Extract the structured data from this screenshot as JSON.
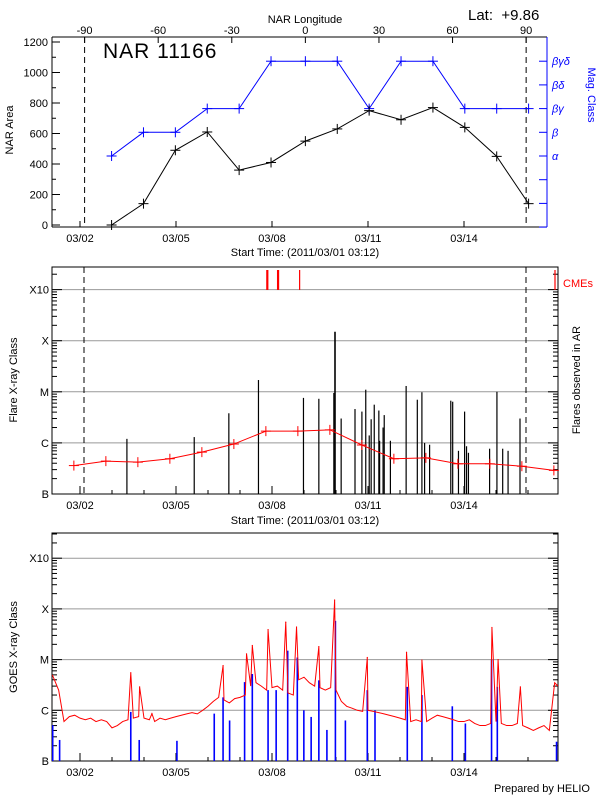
{
  "chart_data": [
    {
      "type": "line",
      "title": "NAR 11166",
      "annotation": "Lat:  +9.86",
      "x_top_label": "NAR Longitude",
      "x_top_ticks": [
        -90,
        -60,
        -30,
        0,
        30,
        60,
        90
      ],
      "x_top_range": [
        -103,
        103
      ],
      "xlabel": "Start Time: (2011/03/01 03:12)",
      "x_date_ticks": [
        "03/02",
        "03/05",
        "03/08",
        "03/11",
        "03/14"
      ],
      "ylabel": "NAR Area",
      "ylim": [
        0,
        1200
      ],
      "y_ticks": [
        0,
        200,
        400,
        600,
        800,
        1000,
        1200
      ],
      "y2label": "Mag. Class",
      "y2_categories": [
        "α",
        "β",
        "βγ",
        "βδ",
        "βγδ"
      ],
      "dashed_longitudes": [
        -90,
        90
      ],
      "colors": {
        "area": "#000000",
        "mag_class": "#0000ff"
      },
      "area_series": {
        "longitude": [
          -79,
          -66,
          -53,
          -40,
          -27,
          -14,
          0,
          13,
          26,
          39,
          52,
          65,
          78,
          91
        ],
        "values": [
          0,
          140,
          490,
          610,
          360,
          410,
          550,
          630,
          750,
          690,
          770,
          640,
          450,
          140
        ]
      },
      "mag_class_series": {
        "longitude": [
          -79,
          -66,
          -53,
          -40,
          -27,
          -14,
          0,
          13,
          26,
          39,
          52,
          65,
          78,
          91
        ],
        "values": [
          "α",
          "β",
          "β",
          "βγ",
          "βγ",
          "βγδ",
          "βγδ",
          "βγδ",
          "βγ",
          "βγδ",
          "βγδ",
          "βγ",
          "βγ",
          "βγ"
        ]
      }
    },
    {
      "type": "bar",
      "ylabel": "Flare X-ray Class",
      "y2label": "Flares observed in AR",
      "y_ticks": [
        "B",
        "C",
        "M",
        "X",
        "X10"
      ],
      "xlabel": "Start Time: (2011/03/01 03:12)",
      "x_date_ticks": [
        "03/02",
        "03/05",
        "03/08",
        "03/11",
        "03/14"
      ],
      "grid": true,
      "cme_label": "CMEs",
      "colors": {
        "flares": "#000000",
        "average": "#ff0000",
        "cmes": "#ff0000",
        "grid": "#999999"
      },
      "dashed_times": [
        "03/02 00:00",
        "03/16 00:00"
      ],
      "flares": [
        [
          "03/03 11:11",
          "C1.2"
        ],
        [
          "03/05 13:40",
          "C1.3"
        ],
        [
          "03/06 15:38",
          "C3.8"
        ],
        [
          "03/07 13:51",
          "M1.7"
        ],
        [
          "03/08 23:36",
          "C7.6"
        ],
        [
          "03/09 11:08",
          "C7.3"
        ],
        [
          "03/09 22:23",
          "C9.5"
        ],
        [
          "03/09 23:15",
          "X1.5"
        ],
        [
          "03/10 03:52",
          "C3.0"
        ],
        [
          "03/10 14:15",
          "C4.6"
        ],
        [
          "03/10 19:26",
          "C4.1"
        ],
        [
          "03/10 22:19",
          "M1.1"
        ],
        [
          "03/11 00:03",
          "B1.3"
        ],
        [
          "03/11 00:55",
          "C1.4"
        ],
        [
          "03/11 02:22",
          "C2.9"
        ],
        [
          "03/11 04:41",
          "C5.6"
        ],
        [
          "03/11 08:08",
          "C4.3"
        ],
        [
          "03/11 08:43",
          "C1.1"
        ],
        [
          "03/11 11:18",
          "C2.0"
        ],
        [
          "03/11 12:10",
          "C3.5"
        ],
        [
          "03/11 16:48",
          "C1.1"
        ],
        [
          "03/12 04:36",
          "M1.3"
        ],
        [
          "03/12 12:59",
          "C7.0"
        ],
        [
          "03/12 16:26",
          "C9.8"
        ],
        [
          "03/12 18:27",
          "C1.0"
        ],
        [
          "03/12 22:12",
          "B9.2"
        ],
        [
          "03/13 14:05",
          "C6.7"
        ],
        [
          "03/13 15:31",
          "C6.4"
        ],
        [
          "03/13 19:51",
          "B7.0"
        ],
        [
          "03/14 00:27",
          "C4.1"
        ],
        [
          "03/14 01:54",
          "B8.6"
        ],
        [
          "03/14 03:20",
          "B6.4"
        ],
        [
          "03/14 19:12",
          "B7.7"
        ],
        [
          "03/15 00:42",
          "M1.0"
        ],
        [
          "03/15 05:01",
          "B7.7"
        ],
        [
          "03/15 09:03",
          "B7.0"
        ],
        [
          "03/15 18:00",
          "C3.0"
        ]
      ],
      "average": [
        [
          "03/01 19:24",
          "B3.6"
        ],
        [
          "03/02 19:24",
          "B4.4"
        ],
        [
          "03/03 19:24",
          "B4.2"
        ],
        [
          "03/04 19:24",
          "B4.9"
        ],
        [
          "03/05 19:24",
          "B6.6"
        ],
        [
          "03/06 19:24",
          "B9.5"
        ],
        [
          "03/07 19:24",
          "C1.7"
        ],
        [
          "03/08 19:24",
          "C1.7"
        ],
        [
          "03/09 19:24",
          "C1.8"
        ],
        [
          "03/10 19:24",
          "B9.1"
        ],
        [
          "03/11 19:24",
          "B4.9"
        ],
        [
          "03/12 19:24",
          "B5.1"
        ],
        [
          "03/13 19:24",
          "B3.9"
        ],
        [
          "03/14 19:24",
          "B3.9"
        ],
        [
          "03/15 19:24",
          "B3.5"
        ],
        [
          "03/16 19:24",
          "B2.9"
        ]
      ],
      "cmes": [
        "03/07 20:29",
        "03/08 04:33",
        "03/08 20:43",
        "03/16 20:15"
      ]
    },
    {
      "type": "line",
      "ylabel": "GOES X-ray Class",
      "y_ticks": [
        "B",
        "C",
        "M",
        "X",
        "X10"
      ],
      "x_date_ticks": [
        "03/02",
        "03/05",
        "03/08",
        "03/11",
        "03/14"
      ],
      "grid": true,
      "footer": "Prepared by HELIO",
      "colors": {
        "long_channel": "#ff0000",
        "short_channel": "#0000ff",
        "grid": "#999999"
      },
      "red_series": [
        [
          "03/01 03:12",
          "C5.0"
        ],
        [
          "03/01 04:00",
          "C4.5"
        ],
        [
          "03/01 08:00",
          "C2.5"
        ],
        [
          "03/01 12:00",
          "B6.0"
        ],
        [
          "03/01 16:00",
          "B7.5"
        ],
        [
          "03/01 20:00",
          "B8.0"
        ],
        [
          "03/02 00:00",
          "B7.0"
        ],
        [
          "03/02 04:00",
          "B6.5"
        ],
        [
          "03/02 08:00",
          "B7.0"
        ],
        [
          "03/02 12:00",
          "B6.0"
        ],
        [
          "03/02 16:00",
          "B6.5"
        ],
        [
          "03/02 20:00",
          "B6.0"
        ],
        [
          "03/03 00:00",
          "B4.5"
        ],
        [
          "03/03 04:00",
          "B5.0"
        ],
        [
          "03/03 08:00",
          "B6.0"
        ],
        [
          "03/03 12:00",
          "B6.5"
        ],
        [
          "03/03 16:00",
          "B7.0"
        ],
        [
          "03/03 20:00",
          "B7.5"
        ],
        [
          "03/04 00:00",
          "B7.0"
        ],
        [
          "03/04 04:00",
          "B6.5"
        ],
        [
          "03/04 08:00",
          "B6.0"
        ],
        [
          "03/04 12:00",
          "B7.0"
        ],
        [
          "03/04 16:00",
          "B6.5"
        ],
        [
          "03/04 20:00",
          "B7.0"
        ],
        [
          "03/05 00:00",
          "B7.5"
        ],
        [
          "03/05 04:00",
          "B8.0"
        ],
        [
          "03/05 08:00",
          "B8.5"
        ],
        [
          "03/05 12:00",
          "B9.0"
        ],
        [
          "03/05 16:00",
          "B8.5"
        ],
        [
          "03/05 20:00",
          "C1.0"
        ],
        [
          "03/06 00:00",
          "C1.2"
        ],
        [
          "03/06 04:00",
          "C1.5"
        ],
        [
          "03/06 08:00",
          "C1.8"
        ],
        [
          "03/06 12:00",
          "C1.6"
        ],
        [
          "03/06 16:00",
          "C1.4"
        ],
        [
          "03/06 20:00",
          "C1.7"
        ],
        [
          "03/07 00:00",
          "C1.8"
        ],
        [
          "03/07 04:00",
          "C2.0"
        ],
        [
          "03/07 08:00",
          "C3.0"
        ],
        [
          "03/07 12:00",
          "C3.5"
        ],
        [
          "03/07 16:00",
          "C3.0"
        ],
        [
          "03/07 20:00",
          "C2.5"
        ],
        [
          "03/08 00:00",
          "C2.8"
        ],
        [
          "03/08 04:00",
          "C3.0"
        ],
        [
          "03/08 08:00",
          "C2.5"
        ],
        [
          "03/08 12:00",
          "C2.2"
        ],
        [
          "03/08 16:00",
          "C2.0"
        ],
        [
          "03/08 20:00",
          "C4.0"
        ],
        [
          "03/09 00:00",
          "C4.5"
        ],
        [
          "03/09 04:00",
          "C3.5"
        ],
        [
          "03/09 08:00",
          "C3.0"
        ],
        [
          "03/09 12:00",
          "C2.8"
        ],
        [
          "03/09 16:00",
          "C2.5"
        ],
        [
          "03/09 20:00",
          "C2.8"
        ],
        [
          "03/10 00:00",
          "C2.5"
        ],
        [
          "03/10 04:00",
          "C1.5"
        ],
        [
          "03/10 08:00",
          "C1.2"
        ],
        [
          "03/10 12:00",
          "C1.1"
        ],
        [
          "03/10 16:00",
          "C1.0"
        ],
        [
          "03/10 20:00",
          "B9.5"
        ],
        [
          "03/11 00:00",
          "C1.0"
        ],
        [
          "03/11 04:00",
          "B9.5"
        ],
        [
          "03/11 08:00",
          "B9.0"
        ],
        [
          "03/11 12:00",
          "B8.5"
        ],
        [
          "03/11 16:00",
          "B8.0"
        ],
        [
          "03/11 20:00",
          "B7.5"
        ],
        [
          "03/12 00:00",
          "B7.0"
        ],
        [
          "03/12 04:00",
          "B6.5"
        ],
        [
          "03/12 08:00",
          "B6.0"
        ],
        [
          "03/12 12:00",
          "B6.5"
        ],
        [
          "03/12 16:00",
          "B6.0"
        ],
        [
          "03/12 20:00",
          "B6.0"
        ],
        [
          "03/13 00:00",
          "B7.0"
        ],
        [
          "03/13 04:00",
          "B8.0"
        ],
        [
          "03/13 08:00",
          "B7.5"
        ],
        [
          "03/13 12:00",
          "B7.0"
        ],
        [
          "03/13 16:00",
          "B6.5"
        ],
        [
          "03/13 20:00",
          "B6.0"
        ],
        [
          "03/14 00:00",
          "B6.0"
        ],
        [
          "03/14 04:00",
          "B6.5"
        ],
        [
          "03/14 08:00",
          "B5.5"
        ],
        [
          "03/14 12:00",
          "B5.0"
        ],
        [
          "03/14 16:00",
          "B5.0"
        ],
        [
          "03/14 20:00",
          "B5.5"
        ],
        [
          "03/15 00:00",
          "B6.0"
        ],
        [
          "03/15 04:00",
          "B5.5"
        ],
        [
          "03/15 08:00",
          "B5.0"
        ],
        [
          "03/15 12:00",
          "B5.0"
        ],
        [
          "03/15 16:00",
          "B5.5"
        ],
        [
          "03/15 20:00",
          "B5.0"
        ],
        [
          "03/16 00:00",
          "B4.5"
        ],
        [
          "03/16 04:00",
          "B4.0"
        ],
        [
          "03/16 08:00",
          "B4.5"
        ],
        [
          "03/16 12:00",
          "B5.0"
        ],
        [
          "03/16 16:00",
          "B4.0"
        ],
        [
          "03/16 20:00",
          "C3.5"
        ],
        [
          "03/16 22:30",
          "C3.0"
        ]
      ],
      "red_peaks": [
        [
          "03/03 14:05",
          "C5.5"
        ],
        [
          "03/03 20:42",
          "C2.9"
        ],
        [
          "03/04 05:57",
          "B8.6"
        ],
        [
          "03/06 11:18",
          "C7.6"
        ],
        [
          "03/07 04:54",
          "M1.3"
        ],
        [
          "03/07 09:14",
          "M1.9"
        ],
        [
          "03/07 21:03",
          "M3.9"
        ],
        [
          "03/08 10:19",
          "M5.5"
        ],
        [
          "03/08 18:24",
          "M4.4"
        ],
        [
          "03/09 11:08",
          "M1.8"
        ],
        [
          "03/09 22:58",
          "X1.5"
        ],
        [
          "03/10 23:28",
          "M1.1"
        ],
        [
          "03/12 04:54",
          "M1.4"
        ],
        [
          "03/12 16:26",
          "C9.8"
        ],
        [
          "03/14 20:57",
          "M4.3"
        ],
        [
          "03/15 01:34",
          "M1.0"
        ],
        [
          "03/15 18:17",
          "C2.9"
        ]
      ],
      "blue_peaks": [
        [
          "03/01 03:32",
          "B5.1"
        ],
        [
          "03/01 08:43",
          "B2.6"
        ],
        [
          "03/03 14:05",
          "B9.3"
        ],
        [
          "03/03 20:25",
          "B2.6"
        ],
        [
          "03/05 00:42",
          "B2.5"
        ],
        [
          "03/06 04:41",
          "B8.6"
        ],
        [
          "03/06 11:18",
          "C1.8"
        ],
        [
          "03/06 16:12",
          "B6.3"
        ],
        [
          "03/07 03:27",
          "C3.6"
        ],
        [
          "03/07 09:14",
          "C5.2"
        ],
        [
          "03/07 21:03",
          "C2.5"
        ],
        [
          "03/08 03:07",
          "C2.5"
        ],
        [
          "03/08 11:46",
          "M1.5"
        ],
        [
          "03/08 18:59",
          "M1.1"
        ],
        [
          "03/08 23:53",
          "C1.0"
        ],
        [
          "03/09 05:22",
          "B7.4"
        ],
        [
          "03/09 11:08",
          "C3.9"
        ],
        [
          "03/09 17:11",
          "B4.1"
        ],
        [
          "03/09 23:33",
          "M5.8"
        ],
        [
          "03/10 07:02",
          "B6.3"
        ],
        [
          "03/10 23:28",
          "C2.5"
        ],
        [
          "03/11 05:15",
          "C1.0"
        ],
        [
          "03/12 05:28",
          "C2.9"
        ],
        [
          "03/12 16:26",
          "C2.0"
        ],
        [
          "03/13 15:14",
          "C1.2"
        ],
        [
          "03/14 01:02",
          "B5.5"
        ],
        [
          "03/14 20:40",
          "M1.0"
        ],
        [
          "03/15 00:59",
          "C2.9"
        ],
        [
          "03/16 21:24",
          "B2.4"
        ]
      ]
    }
  ]
}
